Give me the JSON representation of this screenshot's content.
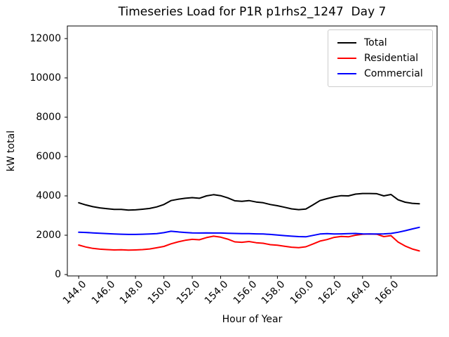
{
  "chart_data": {
    "type": "line",
    "title": "Timeseries Load for P1R p1rhs2_1247  Day 7",
    "xlabel": "Hour of Year",
    "ylabel": "kW total",
    "xlim": [
      143.2,
      169.25
    ],
    "ylim": [
      -70,
      12640
    ],
    "grid": false,
    "legend_position": "upper right",
    "xticks": {
      "values": [
        144,
        146,
        148,
        150,
        152,
        154,
        156,
        158,
        160,
        162,
        164,
        166
      ],
      "labels": [
        "144.0",
        "146.0",
        "148.0",
        "150.0",
        "152.0",
        "154.0",
        "156.0",
        "158.0",
        "160.0",
        "162.0",
        "164.0",
        "166.0"
      ]
    },
    "yticks": {
      "values": [
        0,
        2000,
        4000,
        6000,
        8000,
        10000,
        12000
      ],
      "labels": [
        "0",
        "2000",
        "4000",
        "6000",
        "8000",
        "10000",
        "12000"
      ]
    },
    "x": [
      144,
      144.5,
      145,
      145.5,
      146,
      146.5,
      147,
      147.5,
      148,
      148.5,
      149,
      149.5,
      150,
      150.5,
      151,
      151.5,
      152,
      152.5,
      153,
      153.5,
      154,
      154.5,
      155,
      155.5,
      156,
      156.5,
      157,
      157.5,
      158,
      158.5,
      159,
      159.5,
      160,
      160.5,
      161,
      161.5,
      162,
      162.5,
      163,
      163.5,
      164,
      164.5,
      165,
      165.5,
      166,
      166.5,
      167,
      167.5,
      168
    ],
    "series": [
      {
        "name": "Total",
        "color": "#000000",
        "values": [
          3650,
          3540,
          3450,
          3390,
          3350,
          3310,
          3310,
          3280,
          3290,
          3320,
          3360,
          3440,
          3560,
          3760,
          3830,
          3880,
          3910,
          3880,
          4000,
          4060,
          4010,
          3900,
          3750,
          3720,
          3760,
          3690,
          3650,
          3560,
          3500,
          3420,
          3340,
          3300,
          3330,
          3540,
          3760,
          3860,
          3950,
          4010,
          4000,
          4090,
          4120,
          4120,
          4110,
          4000,
          4070,
          3800,
          3680,
          3620,
          3600
        ]
      },
      {
        "name": "Residential",
        "color": "#ff0000",
        "values": [
          1500,
          1400,
          1330,
          1290,
          1270,
          1250,
          1260,
          1240,
          1250,
          1270,
          1300,
          1360,
          1430,
          1560,
          1660,
          1740,
          1790,
          1770,
          1880,
          1950,
          1900,
          1800,
          1660,
          1640,
          1680,
          1620,
          1590,
          1520,
          1490,
          1440,
          1390,
          1370,
          1410,
          1550,
          1700,
          1780,
          1890,
          1940,
          1920,
          2000,
          2050,
          2060,
          2050,
          1930,
          1980,
          1650,
          1450,
          1300,
          1200
        ]
      },
      {
        "name": "Commercial",
        "color": "#0000ff",
        "values": [
          2150,
          2140,
          2120,
          2100,
          2080,
          2060,
          2050,
          2040,
          2040,
          2050,
          2060,
          2080,
          2130,
          2200,
          2170,
          2140,
          2120,
          2110,
          2120,
          2110,
          2110,
          2100,
          2090,
          2080,
          2080,
          2070,
          2060,
          2040,
          2010,
          1980,
          1950,
          1930,
          1920,
          1990,
          2060,
          2080,
          2060,
          2070,
          2080,
          2090,
          2070,
          2060,
          2060,
          2070,
          2090,
          2150,
          2230,
          2320,
          2400
        ]
      }
    ]
  }
}
